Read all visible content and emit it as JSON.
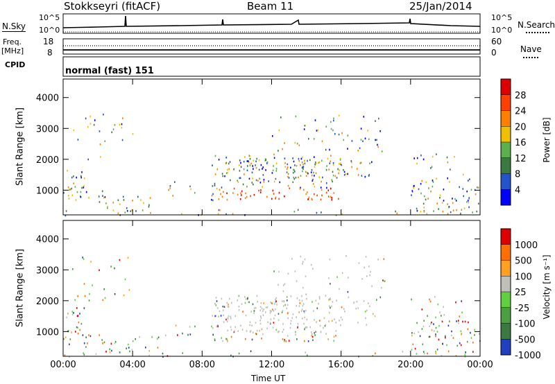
{
  "header": {
    "station": "Stokkseyri (fitACF)",
    "beam": "Beam 11",
    "date": "25/Jan/2014"
  },
  "top_panels": {
    "nsky_label": "N.Sky",
    "nsky_ticks": [
      "10^5",
      "10^0"
    ],
    "nsearch_label": "N.Search",
    "nsearch_ticks": [
      "10^5",
      "10^0"
    ],
    "freq_label_1": "Freq.",
    "freq_label_2": "[MHz]",
    "freq_ticks": [
      "18",
      "8"
    ],
    "nave_label": "Nave",
    "nave_ticks": [
      "60",
      "0"
    ],
    "cpid_label": "CPID",
    "cpid_value": "normal (fast) 151"
  },
  "x_axis": {
    "label": "Time UT",
    "ticks": [
      "00:00",
      "04:00",
      "08:00",
      "12:00",
      "16:00",
      "20:00",
      "00:00"
    ]
  },
  "chart_data": [
    {
      "type": "heatmap",
      "quantity": "Power",
      "ylabel": "Slant Range [km]",
      "yticks": [
        1000,
        2000,
        3000,
        4000
      ],
      "ylim": [
        200,
        4600
      ],
      "xlim_hours": [
        0,
        24
      ],
      "colorbar_label": "Power [dB]",
      "colorbar_ticks": [
        "4",
        "8",
        "12",
        "16",
        "20",
        "24",
        "28"
      ],
      "colorbar_colors": [
        "#0000ff",
        "#2255cc",
        "#3a7a40",
        "#5ab04a",
        "#f0c000",
        "#ff8000",
        "#ff4000",
        "#e00000"
      ]
    },
    {
      "type": "heatmap",
      "quantity": "Velocity",
      "ylabel": "Slant Range [km]",
      "yticks": [
        1000,
        2000,
        3000,
        4000
      ],
      "ylim": [
        200,
        4600
      ],
      "xlim_hours": [
        0,
        24
      ],
      "colorbar_label": "Velocity [m s⁻¹]",
      "colorbar_ticks": [
        "1000",
        "500",
        "100",
        "25",
        "-25",
        "-100",
        "-500",
        "-1000"
      ],
      "colorbar_colors": [
        "#2040c0",
        "#3a7a40",
        "#4aa040",
        "#60d040",
        "#c0c0b8",
        "#ffa020",
        "#ff7000",
        "#e00000"
      ]
    }
  ]
}
